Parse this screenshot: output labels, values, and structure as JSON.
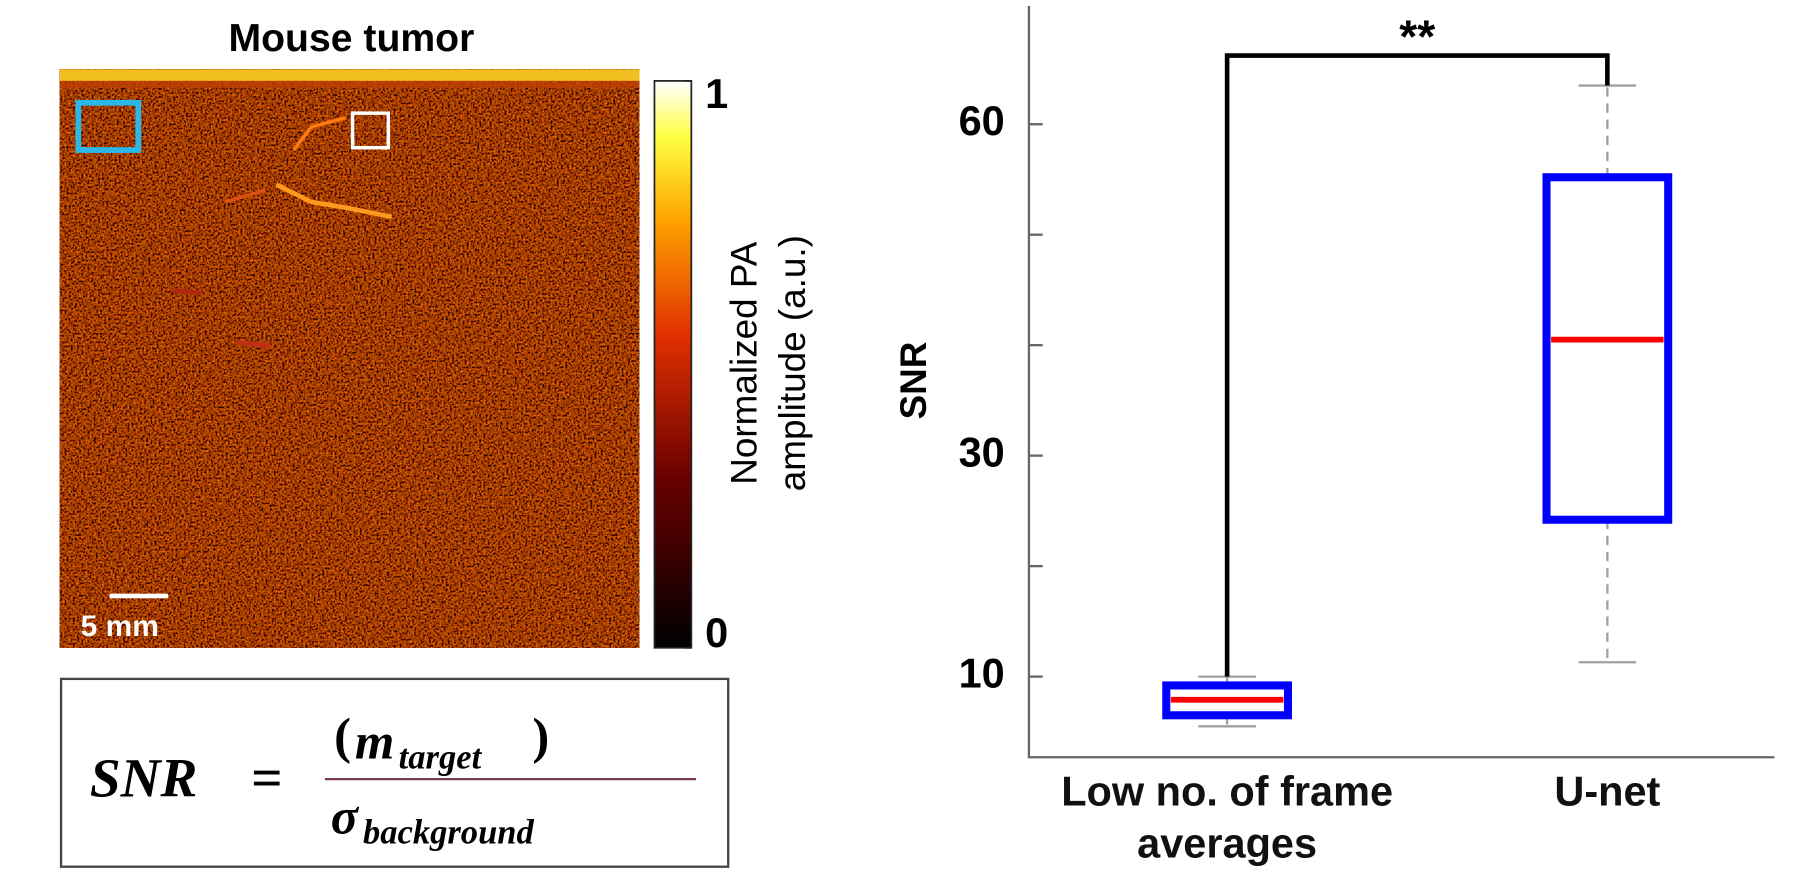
{
  "image_panel": {
    "title": "Mouse tumor",
    "scale_bar": "5 mm",
    "colorbar": {
      "label_lines": [
        "Normalized PA",
        "amplitude (a.u.)"
      ],
      "clim": [
        0,
        1
      ],
      "ticks": [
        0,
        1
      ]
    }
  },
  "formula": {
    "lhs": "SNR",
    "equals": "=",
    "open": "(",
    "numerator": "m",
    "numerator_sub": "target",
    "close": ")",
    "denominator": "σ",
    "denominator_sub": "background"
  },
  "chart_data": {
    "type": "box",
    "ylabel": "SNR",
    "categories": [
      "Low no. of frame averages",
      "U-net"
    ],
    "boxes": [
      {
        "min": 5.5,
        "q1": 6.5,
        "median": 7.9,
        "q3": 9.2,
        "max": 10
      },
      {
        "min": 11.3,
        "q1": 24.2,
        "median": 40.5,
        "q3": 55.2,
        "max": 63.5
      }
    ],
    "box_color": "#0000ff",
    "median_color": "#ff0000",
    "whisker_color": "#a0a0a0",
    "ylim": [
      2.7,
      70.7
    ],
    "yticks": [
      10,
      30,
      60
    ],
    "minor_yticks": [
      20,
      40,
      50
    ],
    "annotations": [
      {
        "text": "**",
        "from": 0,
        "to": 1
      }
    ]
  }
}
